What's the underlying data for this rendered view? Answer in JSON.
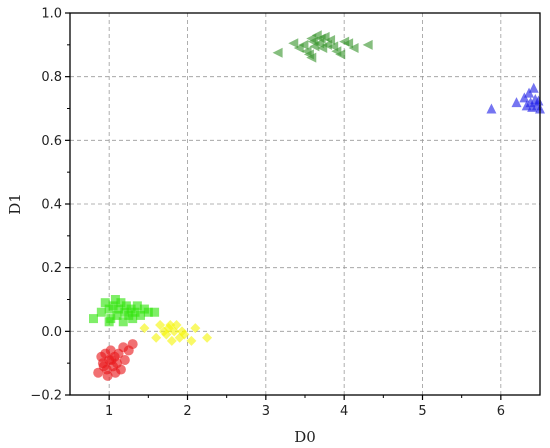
{
  "chart_data": {
    "type": "scatter",
    "title": "",
    "xlabel": "D0",
    "ylabel": "D1",
    "xlim": [
      0.5,
      6.5
    ],
    "ylim": [
      -0.2,
      1.0
    ],
    "xticks": [
      1,
      2,
      3,
      4,
      5,
      6
    ],
    "yticks": [
      -0.2,
      0.0,
      0.2,
      0.4,
      0.6,
      0.8,
      1.0
    ],
    "xtick_labels": [
      "1",
      "2",
      "3",
      "4",
      "5",
      "6"
    ],
    "ytick_labels": [
      "−0.2",
      "0.0",
      "0.2",
      "0.4",
      "0.6",
      "0.8",
      "1.0"
    ],
    "grid": true,
    "legend": false,
    "series": [
      {
        "marker": "circle",
        "color": "#e8191c",
        "points": [
          [
            0.86,
            -0.13
          ],
          [
            0.9,
            -0.08
          ],
          [
            0.92,
            -0.1
          ],
          [
            0.95,
            -0.07
          ],
          [
            0.97,
            -0.12
          ],
          [
            1.0,
            -0.09
          ],
          [
            1.02,
            -0.06
          ],
          [
            1.05,
            -0.11
          ],
          [
            1.07,
            -0.08
          ],
          [
            1.1,
            -0.1
          ],
          [
            1.12,
            -0.07
          ],
          [
            1.15,
            -0.12
          ],
          [
            1.18,
            -0.05
          ],
          [
            1.2,
            -0.09
          ],
          [
            0.98,
            -0.14
          ],
          [
            1.08,
            -0.13
          ],
          [
            1.3,
            -0.04
          ],
          [
            1.25,
            -0.06
          ],
          [
            0.93,
            -0.11
          ],
          [
            1.03,
            -0.09
          ]
        ]
      },
      {
        "marker": "square",
        "color": "#31e30c",
        "points": [
          [
            0.8,
            0.04
          ],
          [
            0.9,
            0.06
          ],
          [
            0.95,
            0.09
          ],
          [
            1.0,
            0.07
          ],
          [
            1.02,
            0.04
          ],
          [
            1.05,
            0.08
          ],
          [
            1.08,
            0.1
          ],
          [
            1.1,
            0.05
          ],
          [
            1.12,
            0.07
          ],
          [
            1.15,
            0.09
          ],
          [
            1.18,
            0.03
          ],
          [
            1.2,
            0.06
          ],
          [
            1.22,
            0.08
          ],
          [
            1.25,
            0.05
          ],
          [
            1.28,
            0.07
          ],
          [
            1.3,
            0.04
          ],
          [
            1.33,
            0.06
          ],
          [
            1.36,
            0.08
          ],
          [
            1.4,
            0.05
          ],
          [
            1.45,
            0.07
          ],
          [
            1.5,
            0.06
          ],
          [
            1.58,
            0.06
          ],
          [
            1.0,
            0.03
          ]
        ]
      },
      {
        "marker": "diamond",
        "color": "#f5f50a",
        "points": [
          [
            1.45,
            0.01
          ],
          [
            1.6,
            -0.02
          ],
          [
            1.65,
            0.02
          ],
          [
            1.7,
            0.0
          ],
          [
            1.73,
            -0.01
          ],
          [
            1.76,
            0.01
          ],
          [
            1.8,
            -0.03
          ],
          [
            1.83,
            0.0
          ],
          [
            1.86,
            0.02
          ],
          [
            1.9,
            -0.02
          ],
          [
            1.93,
            0.0
          ],
          [
            1.96,
            -0.01
          ],
          [
            2.05,
            -0.03
          ],
          [
            2.1,
            0.01
          ],
          [
            2.25,
            -0.02
          ],
          [
            1.78,
            0.02
          ]
        ]
      },
      {
        "marker": "triangle-left",
        "color": "#3a962e",
        "points": [
          [
            3.15,
            0.875
          ],
          [
            3.35,
            0.905
          ],
          [
            3.42,
            0.89
          ],
          [
            3.48,
            0.9
          ],
          [
            3.52,
            0.88
          ],
          [
            3.55,
            0.87
          ],
          [
            3.58,
            0.86
          ],
          [
            3.6,
            0.91
          ],
          [
            3.62,
            0.895
          ],
          [
            3.65,
            0.93
          ],
          [
            3.68,
            0.905
          ],
          [
            3.7,
            0.92
          ],
          [
            3.72,
            0.89
          ],
          [
            3.75,
            0.925
          ],
          [
            3.78,
            0.9
          ],
          [
            3.82,
            0.915
          ],
          [
            3.86,
            0.895
          ],
          [
            3.9,
            0.88
          ],
          [
            3.95,
            0.87
          ],
          [
            4.0,
            0.91
          ],
          [
            4.05,
            0.905
          ],
          [
            4.12,
            0.89
          ],
          [
            4.3,
            0.9
          ],
          [
            3.58,
            0.92
          ]
        ]
      },
      {
        "marker": "triangle-up",
        "color": "#2020e8",
        "points": [
          [
            5.88,
            0.7
          ],
          [
            6.2,
            0.72
          ],
          [
            6.3,
            0.735
          ],
          [
            6.33,
            0.71
          ],
          [
            6.36,
            0.75
          ],
          [
            6.38,
            0.72
          ],
          [
            6.4,
            0.705
          ],
          [
            6.42,
            0.765
          ],
          [
            6.44,
            0.73
          ],
          [
            6.46,
            0.71
          ],
          [
            6.48,
            0.725
          ],
          [
            6.5,
            0.7
          ]
        ]
      }
    ]
  }
}
